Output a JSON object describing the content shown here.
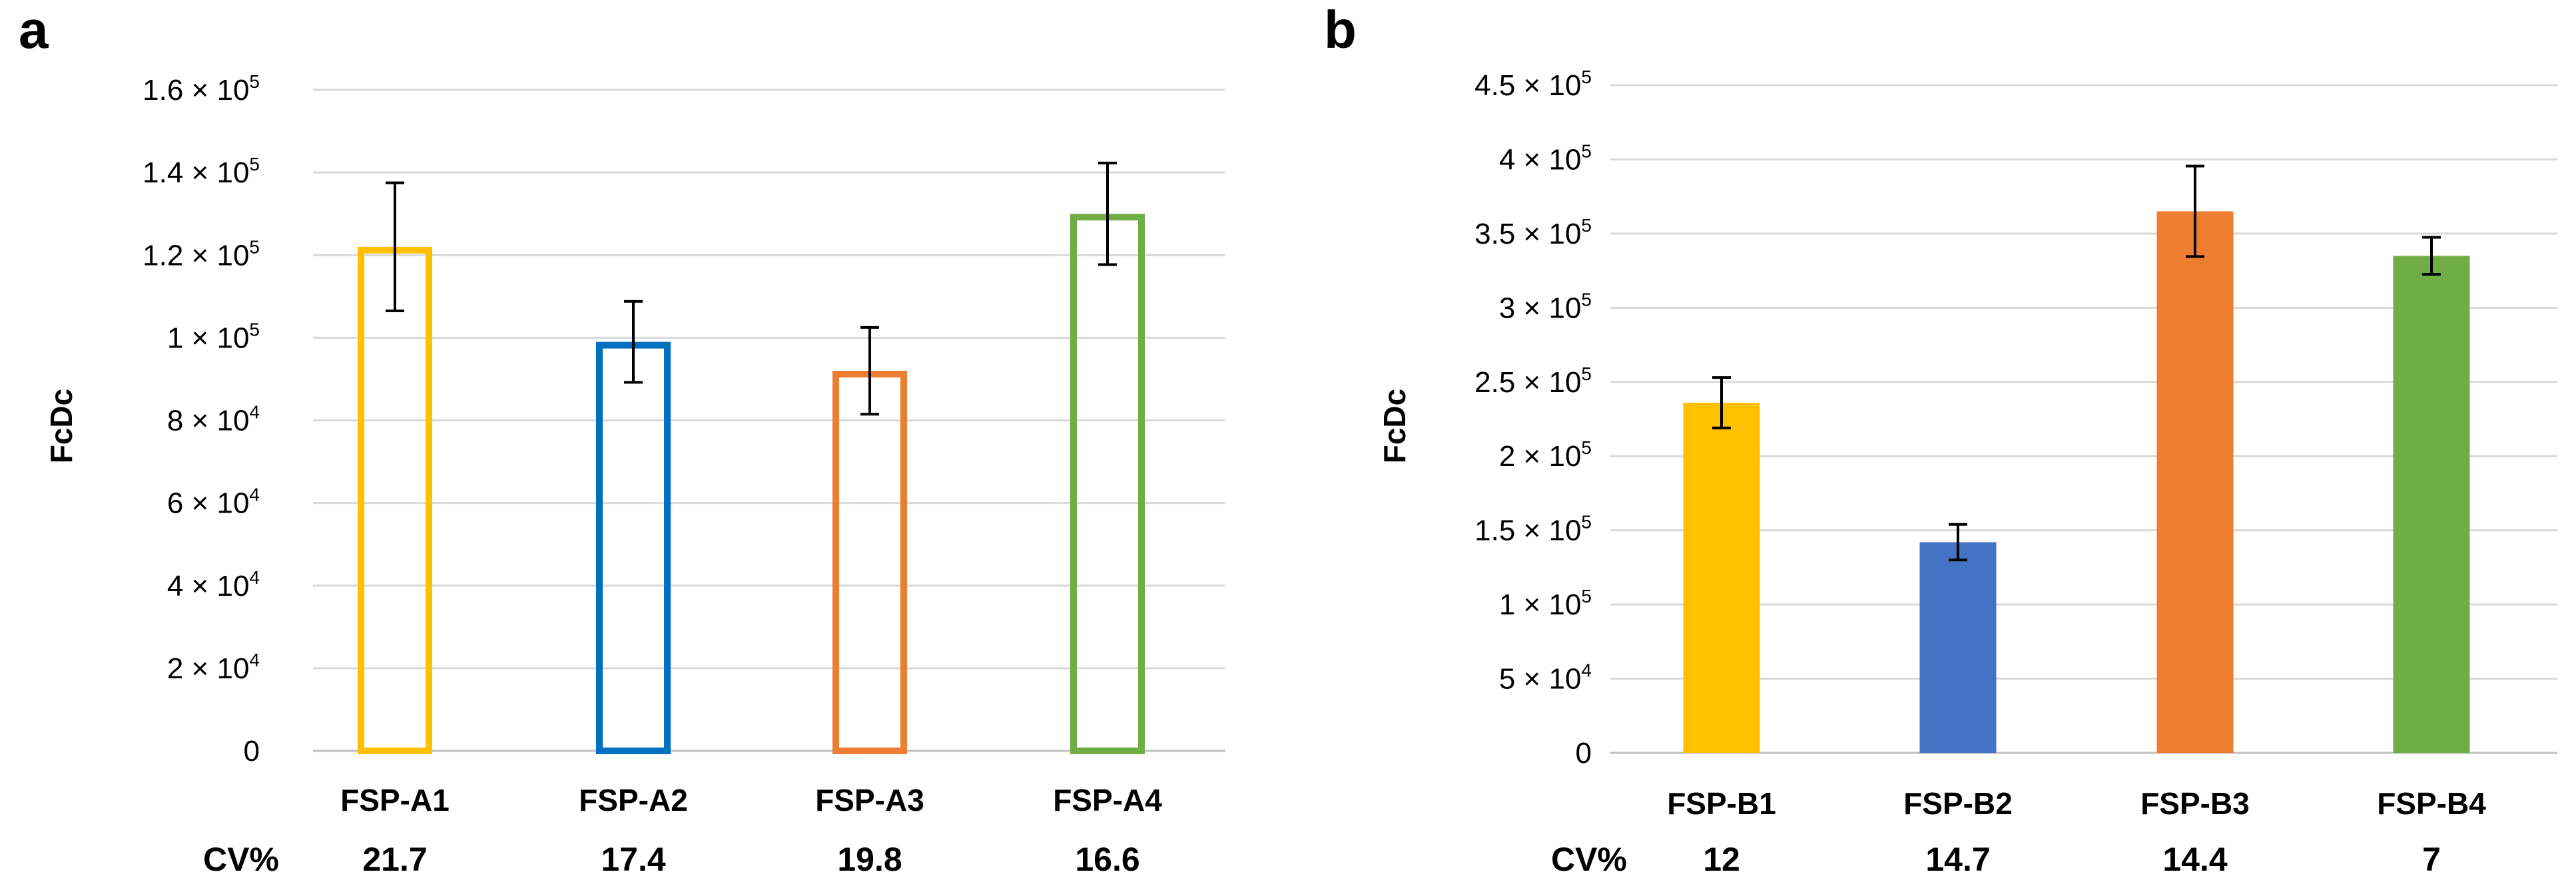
{
  "chart_data": [
    {
      "panel": "a",
      "type": "bar",
      "style": "outline",
      "ylabel": "FcDc",
      "ylim": [
        0,
        160000
      ],
      "yticks": [
        {
          "value": 0,
          "mant": "0",
          "exp": ""
        },
        {
          "value": 20000,
          "mant": "2 × 10",
          "exp": "4"
        },
        {
          "value": 40000,
          "mant": "4 × 10",
          "exp": "4"
        },
        {
          "value": 60000,
          "mant": "6 × 10",
          "exp": "4"
        },
        {
          "value": 80000,
          "mant": "8 × 10",
          "exp": "4"
        },
        {
          "value": 100000,
          "mant": "1 × 10",
          "exp": "5"
        },
        {
          "value": 120000,
          "mant": "1.2 × 10",
          "exp": "5"
        },
        {
          "value": 140000,
          "mant": "1.4 × 10",
          "exp": "5"
        },
        {
          "value": 160000,
          "mant": "1.6 × 10",
          "exp": "5"
        }
      ],
      "categories": [
        "FSP-A1",
        "FSP-A2",
        "FSP-A3",
        "FSP-A4"
      ],
      "values": [
        122000,
        99000,
        92000,
        130000
      ],
      "errors": [
        15500,
        9800,
        10500,
        12300
      ],
      "colors": [
        "#FFC000",
        "#0070C0",
        "#ED7D31",
        "#70AD47"
      ],
      "cv_label": "CV%",
      "cv_values": [
        "21.7",
        "17.4",
        "19.8",
        "16.6"
      ]
    },
    {
      "panel": "b",
      "type": "bar",
      "style": "filled",
      "ylabel": "FcDc",
      "ylim": [
        0,
        450000
      ],
      "yticks": [
        {
          "value": 0,
          "mant": "0",
          "exp": ""
        },
        {
          "value": 50000,
          "mant": "5 × 10",
          "exp": "4"
        },
        {
          "value": 100000,
          "mant": "1 × 10",
          "exp": "5"
        },
        {
          "value": 150000,
          "mant": "1.5 × 10",
          "exp": "5"
        },
        {
          "value": 200000,
          "mant": "2 × 10",
          "exp": "5"
        },
        {
          "value": 250000,
          "mant": "2.5 × 10",
          "exp": "5"
        },
        {
          "value": 300000,
          "mant": "3 × 10",
          "exp": "5"
        },
        {
          "value": 350000,
          "mant": "3.5 × 10",
          "exp": "5"
        },
        {
          "value": 400000,
          "mant": "4 × 10",
          "exp": "5"
        },
        {
          "value": 450000,
          "mant": "4.5 × 10",
          "exp": "5"
        }
      ],
      "categories": [
        "FSP-B1",
        "FSP-B2",
        "FSP-B3",
        "FSP-B4"
      ],
      "values": [
        236000,
        142000,
        365000,
        335000
      ],
      "errors": [
        17000,
        12000,
        30500,
        12500
      ],
      "colors": [
        "#FFC000",
        "#4472C4",
        "#ED7D31",
        "#70AD47"
      ],
      "cv_label": "CV%",
      "cv_values": [
        "12",
        "14.7",
        "14.4",
        "7"
      ]
    }
  ]
}
